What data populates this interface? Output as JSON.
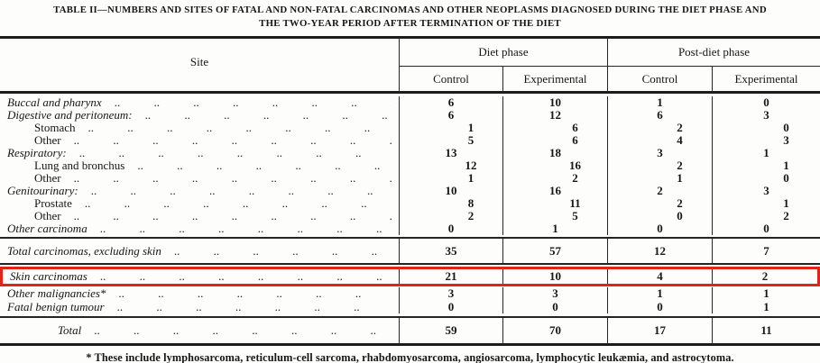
{
  "title": {
    "line1": "TABLE II—NUMBERS AND SITES OF FATAL AND NON-FATAL CARCINOMAS AND OTHER NEOPLASMS DIAGNOSED DURING THE DIET PHASE AND",
    "line2": "THE TWO-YEAR PERIOD AFTER TERMINATION OF THE DIET"
  },
  "header": {
    "site": "Site",
    "groups": [
      {
        "label": "Diet phase"
      },
      {
        "label": "Post-diet phase"
      }
    ],
    "columns": [
      "Control",
      "Experimental",
      "Control",
      "Experimental"
    ]
  },
  "table": {
    "leader": ".. .. .. .. .. .. .. .. .. .. .. ..",
    "rows": [
      {
        "label": "Buccal and pharynx",
        "values": [
          "6",
          "10",
          "1",
          "0"
        ]
      },
      {
        "label": "Digestive and peritoneum:",
        "values": [
          "6",
          "12",
          "6",
          "3"
        ]
      },
      {
        "label": "Stomach",
        "values": [
          "1",
          "6",
          "2",
          "0"
        ]
      },
      {
        "label": "Other",
        "values": [
          "5",
          "6",
          "4",
          "3"
        ]
      },
      {
        "label": "Respiratory:",
        "values": [
          "13",
          "18",
          "3",
          "1"
        ]
      },
      {
        "label": "Lung and bronchus",
        "values": [
          "12",
          "16",
          "2",
          "1"
        ]
      },
      {
        "label": "Other",
        "values": [
          "1",
          "2",
          "1",
          "0"
        ]
      },
      {
        "label": "Genitourinary:",
        "values": [
          "10",
          "16",
          "2",
          "3"
        ]
      },
      {
        "label": "Prostate",
        "values": [
          "8",
          "11",
          "2",
          "1"
        ]
      },
      {
        "label": "Other",
        "values": [
          "2",
          "5",
          "0",
          "2"
        ]
      },
      {
        "label": "Other carcinoma",
        "values": [
          "0",
          "1",
          "0",
          "0"
        ]
      },
      {
        "label": "Total carcinomas, excluding skin",
        "values": [
          "35",
          "57",
          "12",
          "7"
        ]
      },
      {
        "label": "Skin carcinomas",
        "values": [
          "21",
          "10",
          "4",
          "2"
        ]
      },
      {
        "label": "Other malignancies*",
        "values": [
          "3",
          "3",
          "1",
          "1"
        ]
      },
      {
        "label": "Fatal benign tumour",
        "values": [
          "0",
          "0",
          "0",
          "1"
        ]
      },
      {
        "label": "Total",
        "values": [
          "59",
          "70",
          "17",
          "11"
        ]
      }
    ]
  },
  "annotation": {
    "type": "highlight-box",
    "highlighted_row": "Skin carcinomas",
    "color": "#e0241a"
  },
  "footnote": "* These include lymphosarcoma, reticulum-cell sarcoma, rhabdomyosarcoma, angiosarcoma, lymphocytic leukæmia, and astrocytoma."
}
